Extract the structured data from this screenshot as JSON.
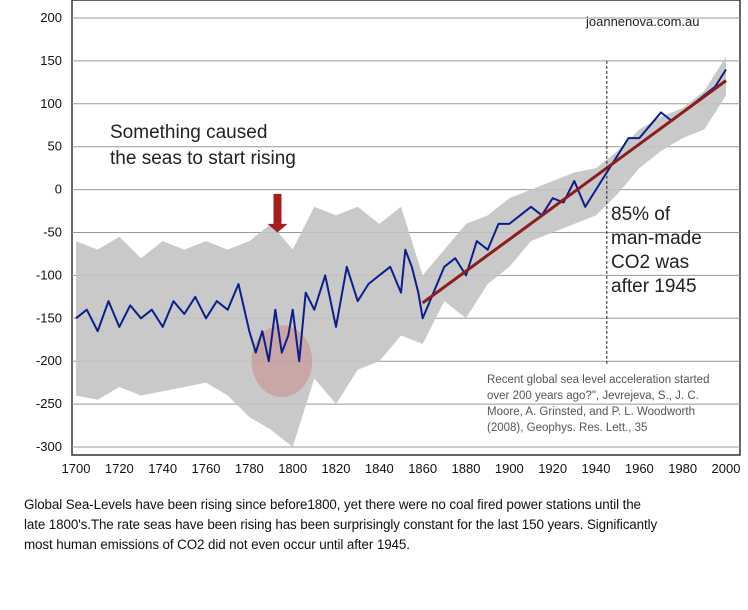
{
  "chart_data": {
    "type": "line",
    "title": "",
    "xlabel": "",
    "ylabel": "",
    "xlim": [
      1700,
      2000
    ],
    "ylim": [
      -300,
      200
    ],
    "xticks": [
      1700,
      1720,
      1740,
      1760,
      1780,
      1800,
      1820,
      1840,
      1860,
      1880,
      1900,
      1920,
      1940,
      1960,
      1980,
      2000
    ],
    "yticks": [
      200,
      150,
      100,
      50,
      0,
      -50,
      -100,
      -150,
      -200,
      -250,
      -300
    ],
    "grid": "horizontal",
    "colors": {
      "series": "#0a1f8c",
      "band": "#c3c3c3",
      "trend": "#8a1d1d",
      "arrow": "#a41c1c",
      "highlight": "#c98a8a",
      "axis": "#333333"
    },
    "series": [
      {
        "x": [
          1700,
          1705,
          1710,
          1715,
          1720,
          1725,
          1730,
          1735,
          1740,
          1745,
          1750,
          1755,
          1760,
          1765,
          1770,
          1775,
          1780,
          1783,
          1786,
          1789,
          1792,
          1795,
          1798,
          1800,
          1803,
          1806,
          1810,
          1815,
          1820,
          1825,
          1830,
          1835,
          1840,
          1845,
          1850,
          1852,
          1855,
          1858,
          1860,
          1865,
          1870,
          1875,
          1880,
          1885,
          1890,
          1895,
          1900,
          1905,
          1910,
          1915,
          1920,
          1925,
          1930,
          1935,
          1940,
          1945,
          1950,
          1955,
          1960,
          1965,
          1970,
          1975,
          1980,
          1985,
          1990,
          1995,
          2000
        ],
        "values": [
          -150,
          -140,
          -165,
          -130,
          -160,
          -135,
          -150,
          -140,
          -160,
          -130,
          -145,
          -125,
          -150,
          -130,
          -140,
          -110,
          -165,
          -190,
          -165,
          -200,
          -140,
          -190,
          -170,
          -140,
          -200,
          -120,
          -140,
          -100,
          -160,
          -90,
          -130,
          -110,
          -100,
          -90,
          -120,
          -70,
          -90,
          -120,
          -150,
          -120,
          -90,
          -80,
          -100,
          -60,
          -70,
          -40,
          -40,
          -30,
          -20,
          -30,
          -10,
          -15,
          10,
          -20,
          0,
          20,
          40,
          60,
          60,
          75,
          90,
          80,
          90,
          100,
          110,
          120,
          140
        ]
      }
    ],
    "uncertainty_band": {
      "x": [
        1700,
        1710,
        1720,
        1730,
        1740,
        1750,
        1760,
        1770,
        1780,
        1790,
        1800,
        1810,
        1820,
        1830,
        1840,
        1850,
        1860,
        1870,
        1880,
        1890,
        1900,
        1910,
        1920,
        1930,
        1940,
        1950,
        1960,
        1970,
        1980,
        1990,
        2000
      ],
      "upper": [
        -60,
        -70,
        -55,
        -80,
        -60,
        -70,
        -60,
        -70,
        -60,
        -40,
        -70,
        -20,
        -30,
        -20,
        -40,
        -20,
        -100,
        -70,
        -40,
        -30,
        -10,
        0,
        10,
        20,
        25,
        45,
        70,
        85,
        95,
        115,
        155
      ],
      "lower": [
        -240,
        -245,
        -230,
        -240,
        -235,
        -230,
        -225,
        -240,
        -265,
        -280,
        -300,
        -220,
        -250,
        -210,
        -200,
        -170,
        -180,
        -130,
        -150,
        -110,
        -90,
        -60,
        -50,
        -40,
        -30,
        -5,
        25,
        45,
        60,
        70,
        110
      ]
    },
    "trend_line": {
      "x": [
        1860,
        2000
      ],
      "y": [
        -132,
        127
      ]
    },
    "marker_line": {
      "x": 1945
    },
    "highlight": {
      "x": 1795,
      "y": -200,
      "rx_years": 14,
      "ry_units": 42
    },
    "arrow": {
      "x": 1793,
      "y_from": -120,
      "y_to": -50
    },
    "source_text": "joannenova.com.au",
    "annotation_top": [
      "Something caused",
      "the seas to start rising"
    ],
    "annotation_right": [
      "85% of",
      "man-made",
      "CO2 was",
      "after 1945"
    ],
    "citation": [
      "Recent global sea level acceleration started",
      "over 200 years ago?\", Jevrejeva, S., J. C.",
      "Moore, A. Grinsted, and P. L. Woodworth",
      "(2008),  Geophys. Res. Lett., 35"
    ]
  },
  "caption": [
    "Global Sea-Levels have been rising since before1800, yet there were no coal fired power stations until the",
    "late 1800's.The rate seas have been rising has been surprisingly constant for the last 150 years. Significantly",
    "most human emissions of CO2 did not even occur until after 1945."
  ]
}
